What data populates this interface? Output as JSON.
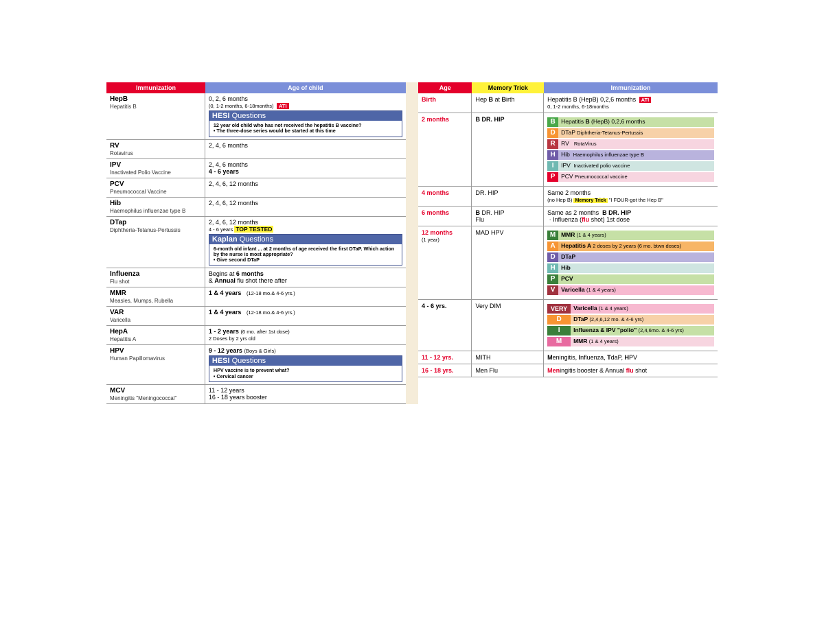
{
  "colors": {
    "red": "#e4002b",
    "purple": "#7b8fd9",
    "yellow": "#fff23a",
    "qboxBlue": "#4f66a7",
    "green": "#4aa84a",
    "orange": "#f79433",
    "pink": "#f7b9d0",
    "hibPurple": "#6f5ca8",
    "teal": "#6fb9b2",
    "darkRed": "#b8353f",
    "greenDark": "#3a7f3a",
    "varMaroon": "#a1323f",
    "mmrPink": "#e86aa0",
    "hepABar": "#f7b566",
    "lavender": "#b9b3dd",
    "tealLight": "#cfe5e1",
    "pinkLight": "#f7d5e0",
    "orangeLight": "#f7d1a8",
    "greenLight": "#c6e0a6"
  },
  "left": {
    "header": {
      "immunization": "Immunization",
      "age": "Age of child"
    },
    "rows": [
      {
        "abbr": "HepB",
        "sub": "Hepatitis B",
        "line1": "0, 2, 6 months",
        "line2": "(0, 1-2 months, 6-18months)",
        "ati": "ATI",
        "qbox": {
          "title_b": "HESI",
          "title_l": " Questions",
          "body_b": "12 year old child who has not received the hepatitis B vaccine?",
          "body_bullet": "• The three-dose series would be started at this time"
        }
      },
      {
        "abbr": "RV",
        "sub": "Rotavirus",
        "line1": "2, 4, 6 months"
      },
      {
        "abbr": "IPV",
        "sub": "Inactivated Polio Vaccine",
        "line1": "2, 4, 6 months",
        "line2b": "4 - 6 years"
      },
      {
        "abbr": "PCV",
        "sub": "Pneumococcal Vaccine",
        "line1": "2, 4, 6, 12 months"
      },
      {
        "abbr": "Hib",
        "sub": "Haemophilus influenzae type B",
        "line1": "2, 4, 6, 12 months"
      },
      {
        "abbr": "DTap",
        "sub": "Diphtheria-Tetanus-Pertussis",
        "line1": "2, 4, 6, 12 months",
        "line2": "4 - 6 years ",
        "topTested": "TOP TESTED",
        "qbox": {
          "title_b": "Kaplan",
          "title_l": " Questions",
          "body_b": "6-month old infant ... at 2 months of age received the first DTaP. Which action by the nurse is most appropriate?",
          "body_bullet": "• Give second DTaP"
        }
      },
      {
        "abbr": "Influenza",
        "sub": "Flu shot",
        "line1_html": "Begins at <b>6 months</b><br>& <b>Annual</b> flu shot there after"
      },
      {
        "abbr": "MMR",
        "sub": "Measles, Mumps, Rubella",
        "line1_html": "<b>1 & 4 years</b>&nbsp;&nbsp;&nbsp;<span class='tiny'>(12-18 mo.& 4-6 yrs.)</span>"
      },
      {
        "abbr": "VAR",
        "sub": "Varicella",
        "line1_html": "<b>1 & 4 years</b>&nbsp;&nbsp;&nbsp;<span class='tiny'>(12-18 mo.& 4-6 yrs.)</span>"
      },
      {
        "abbr": "HepA",
        "sub": "Hepatitis A",
        "line1_html": "<b>1 - 2 years</b>&nbsp;<span class='tiny'>(6 mo. after 1st dose)</span><br><span class='tiny'>2 Doses by 2 yrs old</span>"
      },
      {
        "abbr": "HPV",
        "sub": "Human Papillomavirus",
        "line1_html": "<b>9 - 12 years</b> <span class='tiny'>(Boys & Girls)</span>",
        "qbox": {
          "title_b": "HESI",
          "title_l": " Questions",
          "body_b": "HPV vaccine is to prevent what?",
          "body_bullet": "• Cervical cancer"
        }
      },
      {
        "abbr": "MCV",
        "sub": "Meningitis \"Meningococcal\"",
        "line1_html": "11 - 12 years<br>16 - 18 years booster"
      }
    ]
  },
  "right": {
    "header": {
      "age": "Age",
      "trick": "Memory Trick",
      "immun": "Immunization"
    },
    "rows": [
      {
        "age": "Birth",
        "ageClass": "ageRed",
        "trick_html": "Hep <b>B</b> at <b>B</b>irth",
        "immun_html": "Hepatitis B (HepB) 0,2,6 months <span class='atiBadge'>ATI</span><br><span class='tiny'>0, 1-2 months, 6-18months</span>"
      },
      {
        "age": "2 months",
        "ageClass": "ageRed",
        "trick_html": "<b>B DR. HIP</b>",
        "pills": [
          {
            "letter": "B",
            "letterBg": "#4aa84a",
            "body": "Hepatitis <b>B</b> (HepB) 0,2,6 months",
            "bodyBg": "#c6e0a6"
          },
          {
            "letter": "D",
            "letterBg": "#f79433",
            "body": "DTaP <span class='tiny'>Diphtheria-Tetanus-Pertussis</span>",
            "bodyBg": "#f7d1a8"
          },
          {
            "letter": "R",
            "letterBg": "#b8353f",
            "body": "RV&nbsp;&nbsp;&nbsp;<span class='tiny'>RotaVirus</span>",
            "bodyBg": "#f7d5e0"
          },
          {
            "letter": "H",
            "letterBg": "#6f5ca8",
            "body": "Hib&nbsp;&nbsp;<span class='tiny'>Haemophilus influenzae type B</span>",
            "bodyBg": "#b9b3dd"
          },
          {
            "letter": "I",
            "letterBg": "#6fb9b2",
            "body": "IPV&nbsp;&nbsp;<span class='tiny'>Inactivated polio vaccine</span>",
            "bodyBg": "#cfe5e1"
          },
          {
            "letter": "P",
            "letterBg": "#e4002b",
            "body": "PCV <span class='tiny'>Pneumococcal vaccine</span>",
            "bodyBg": "#f7d5e0"
          }
        ]
      },
      {
        "age": "4 months",
        "ageClass": "ageRed",
        "trick_html": "DR. HIP",
        "immun_html": "Same 2 months<br><span class='tiny'>(no Hep B) </span><span class='memTrick'>Memory Trick</span><span class='tiny'> \"I FOUR-got the Hep B\"</span>"
      },
      {
        "age": "6 months",
        "ageClass": "ageRed",
        "trick_html": "<b>B</b> DR. HIP<br>Flu",
        "immun_html": "Same as 2 months &nbsp;<b>B DR. HIP</b><br>&nbsp;· Influenza (<b class='boldRed'>flu</b> shot) 1st dose"
      },
      {
        "age": "12 months",
        "ageSub": "(1 year)",
        "ageClass": "ageRed",
        "trick_html": "MAD HPV",
        "pills": [
          {
            "letter": "M",
            "letterBg": "#3a7f3a",
            "body": "MMR <span class='tiny'>(1 & 4 years)</span>",
            "bodyBg": "#c6e0a6",
            "bold": true
          },
          {
            "letter": "A",
            "letterBg": "#f79433",
            "body": "Hepatitis A <span class='tiny'>2 doses by 2 years (6 mo. btwn doses)</span>",
            "bodyBg": "#f7b566",
            "bold": true
          },
          {
            "letter": "D",
            "letterBg": "#6f5ca8",
            "body": "DTaP",
            "bodyBg": "#b9b3dd",
            "bold": true
          },
          {
            "letter": "H",
            "letterBg": "#6fb9b2",
            "body": "Hib",
            "bodyBg": "#cfe5e1",
            "bold": true
          },
          {
            "letter": "P",
            "letterBg": "#3a7f3a",
            "body": "PCV",
            "bodyBg": "#c6e0a6",
            "bold": true
          },
          {
            "letter": "V",
            "letterBg": "#a1323f",
            "body": "Varicella <span class='tiny'>(1 & 4 years)</span>",
            "bodyBg": "#f7b9d0",
            "bold": true
          }
        ]
      },
      {
        "age": "4 - 6 yrs.",
        "ageClass": "ageBlk",
        "trick_html": "Very DIM",
        "widePills": [
          {
            "word": "VERY",
            "wordBg": "#a1323f",
            "body": "Varicella <span class='tiny'>(1 & 4 years)</span>",
            "bodyBg": "#f7b9d0"
          },
          {
            "letter": "D",
            "letterBg": "#f79433",
            "body": "DTaP <span class='tiny'>(2,4,6,12 mo. & 4-6 yrs)</span>",
            "bodyBg": "#f7d1a8",
            "letterW": "34"
          },
          {
            "letter": "I",
            "letterBg": "#3a7f3a",
            "body": "Influenza & <b>IPV</b> \"polio\" <span class='tiny'>(2,4,6mo. & 4-6 yrs)</span>",
            "bodyBg": "#c6e0a6",
            "letterW": "34"
          },
          {
            "letter": "M",
            "letterBg": "#e86aa0",
            "body": "MMR <span class='tiny'>(1 & 4 years)</span>",
            "bodyBg": "#f7d5e0",
            "letterW": "34"
          }
        ]
      },
      {
        "age": "11 - 12 yrs.",
        "ageClass": "ageRed",
        "trick_html": "MITH",
        "immun_html": "<b>M</b>eningitis, <b>I</b>nfluenza, <b>T</b>daP, <b>H</b>PV"
      },
      {
        "age": "16 - 18 yrs.",
        "ageClass": "ageRed",
        "trick_html": "Men Flu",
        "immun_html": "<span class='boldRed'>Men</span>ingitis booster & Annual <span class='boldRed'>flu</span> shot"
      }
    ]
  }
}
